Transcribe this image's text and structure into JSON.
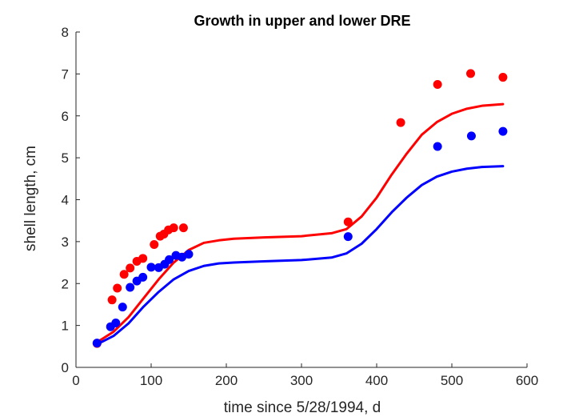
{
  "chart_data": {
    "type": "scatter",
    "title": "Growth in upper and lower DRE",
    "xlabel": "time since 5/28/1994, d",
    "ylabel": "shell length, cm",
    "xlim": [
      0,
      600
    ],
    "ylim": [
      0,
      8
    ],
    "xticks": [
      0,
      100,
      200,
      300,
      400,
      500,
      600
    ],
    "yticks": [
      0,
      1,
      2,
      3,
      4,
      5,
      6,
      7,
      8
    ],
    "grid": false,
    "legend": null,
    "series": [
      {
        "kind": "points",
        "color": "#ff0000",
        "points": [
          [
            28,
            0.57
          ],
          [
            48,
            1.61
          ],
          [
            55,
            1.89
          ],
          [
            64,
            2.22
          ],
          [
            72,
            2.37
          ],
          [
            81,
            2.53
          ],
          [
            89,
            2.6
          ],
          [
            104,
            2.93
          ],
          [
            112,
            3.13
          ],
          [
            117,
            3.18
          ],
          [
            123,
            3.28
          ],
          [
            130,
            3.33
          ],
          [
            143,
            3.33
          ],
          [
            362,
            3.47
          ],
          [
            432,
            5.84
          ],
          [
            481,
            6.75
          ],
          [
            525,
            7.01
          ],
          [
            568,
            6.92
          ]
        ]
      },
      {
        "kind": "points",
        "color": "#0000ff",
        "points": [
          [
            28,
            0.58
          ],
          [
            46,
            0.97
          ],
          [
            53,
            1.06
          ],
          [
            62,
            1.44
          ],
          [
            72,
            1.91
          ],
          [
            81,
            2.06
          ],
          [
            89,
            2.15
          ],
          [
            100,
            2.39
          ],
          [
            110,
            2.38
          ],
          [
            118,
            2.46
          ],
          [
            124,
            2.57
          ],
          [
            133,
            2.67
          ],
          [
            141,
            2.63
          ],
          [
            150,
            2.7
          ],
          [
            362,
            3.12
          ],
          [
            481,
            5.27
          ],
          [
            526,
            5.52
          ],
          [
            568,
            5.63
          ]
        ]
      },
      {
        "kind": "curve",
        "color": "#ff0000",
        "x": [
          28,
          50,
          70,
          90,
          110,
          130,
          150,
          170,
          190,
          210,
          250,
          300,
          340,
          360,
          380,
          400,
          420,
          440,
          460,
          480,
          500,
          520,
          540,
          568
        ],
        "y": [
          0.6,
          0.85,
          1.2,
          1.65,
          2.1,
          2.5,
          2.8,
          2.97,
          3.03,
          3.07,
          3.1,
          3.13,
          3.2,
          3.3,
          3.6,
          4.05,
          4.6,
          5.1,
          5.55,
          5.85,
          6.05,
          6.17,
          6.24,
          6.28
        ]
      },
      {
        "kind": "curve",
        "color": "#0000ff",
        "x": [
          28,
          50,
          70,
          90,
          110,
          130,
          150,
          170,
          190,
          210,
          250,
          300,
          340,
          360,
          380,
          400,
          420,
          440,
          460,
          480,
          500,
          520,
          540,
          568
        ],
        "y": [
          0.55,
          0.75,
          1.05,
          1.45,
          1.8,
          2.1,
          2.3,
          2.42,
          2.48,
          2.5,
          2.53,
          2.56,
          2.62,
          2.72,
          2.95,
          3.3,
          3.7,
          4.05,
          4.35,
          4.55,
          4.67,
          4.74,
          4.78,
          4.8
        ]
      }
    ]
  }
}
